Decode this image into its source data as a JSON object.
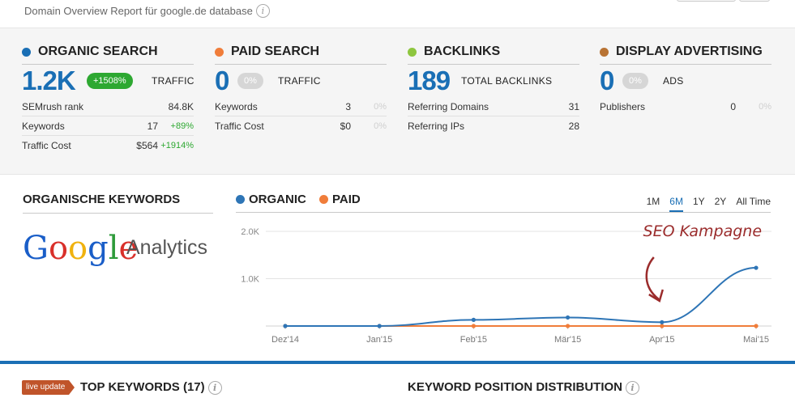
{
  "header": {
    "report_title": "Domain Overview Report für google.de database",
    "info_icon": "i"
  },
  "panels": [
    {
      "title": "ORGANIC SEARCH",
      "dot_color": "#1a6fb5",
      "big_value": "1.2K",
      "badge": "+1508%",
      "badge_style": "green",
      "big_label": "TRAFFIC",
      "metrics": [
        {
          "label": "SEMrush rank",
          "value": "84.8K",
          "delta": ""
        },
        {
          "label": "Keywords",
          "value": "17",
          "delta": "+89%"
        },
        {
          "label": "Traffic Cost",
          "value": "$564",
          "delta": "+1914%"
        }
      ]
    },
    {
      "title": "PAID SEARCH",
      "dot_color": "#f07d3a",
      "big_value": "0",
      "badge": "0%",
      "badge_style": "gray",
      "big_label": "TRAFFIC",
      "metrics": [
        {
          "label": "Keywords",
          "value": "3",
          "delta": "0%"
        },
        {
          "label": "Traffic Cost",
          "value": "$0",
          "delta": "0%"
        }
      ]
    },
    {
      "title": "BACKLINKS",
      "dot_color": "#8ec63f",
      "big_value": "189",
      "badge": "",
      "badge_style": "",
      "big_label": "TOTAL BACKLINKS",
      "metrics": [
        {
          "label": "Referring Domains",
          "value": "31",
          "delta": ""
        },
        {
          "label": "Referring IPs",
          "value": "28",
          "delta": ""
        }
      ]
    },
    {
      "title": "DISPLAY ADVERTISING",
      "dot_color": "#b87333",
      "big_value": "0",
      "badge": "0%",
      "badge_style": "gray",
      "big_label": "ADS",
      "metrics": [
        {
          "label": "Publishers",
          "value": "0",
          "delta": "0%"
        }
      ]
    }
  ],
  "keywords_section": {
    "title": "ORGANISCHE KEYWORDS",
    "logo_text_google": "Google",
    "logo_text_analytics": "Analytics"
  },
  "chart_legend": {
    "organic": "ORGANIC",
    "paid": "PAID",
    "organic_color": "#2e75b6",
    "paid_color": "#f07d3a"
  },
  "range_tabs": [
    {
      "label": "1M",
      "active": false
    },
    {
      "label": "6M",
      "active": true
    },
    {
      "label": "1Y",
      "active": false
    },
    {
      "label": "2Y",
      "active": false
    },
    {
      "label": "All Time",
      "active": false
    }
  ],
  "chart_data": {
    "type": "line",
    "x": [
      "Dez'14",
      "Jan'15",
      "Feb'15",
      "Mär'15",
      "Apr'15",
      "Mai'15"
    ],
    "series": [
      {
        "name": "ORGANIC",
        "values": [
          0,
          0,
          130,
          180,
          80,
          1230
        ],
        "color": "#2e75b6"
      },
      {
        "name": "PAID",
        "values": [
          0,
          0,
          0,
          0,
          0,
          0
        ],
        "color": "#f07d3a"
      }
    ],
    "yticks": [
      "2.0K",
      "1.0K"
    ],
    "ylim": [
      0,
      2000
    ],
    "annotation": "SEO Kampagne",
    "annotation_color": "#9b2c2c"
  },
  "bottom": {
    "live_badge": "live update",
    "top_keywords": "TOP KEYWORDS (17)",
    "distribution": "KEYWORD POSITION DISTRIBUTION"
  }
}
